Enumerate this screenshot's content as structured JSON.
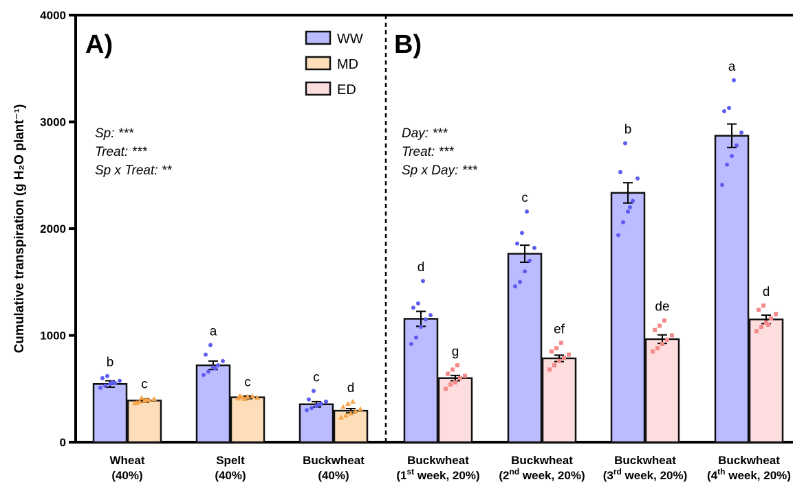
{
  "chart_data": {
    "type": "bar",
    "ylabel": "Cumulative transpiration (g H₂O plant⁻¹)",
    "ylim": [
      0,
      4000
    ],
    "yticks": [
      "0",
      "1000",
      "2000",
      "3000",
      "4000"
    ],
    "panels": [
      "A)",
      "B)"
    ],
    "legend": {
      "placement": "top-center",
      "entries": [
        {
          "name": "WW",
          "color": "#bbbcff",
          "stroke": "#111111"
        },
        {
          "name": "MD",
          "color": "#fddeb8",
          "stroke": "#111111"
        },
        {
          "name": "ED",
          "color": "#fddddd",
          "stroke": "#111111"
        }
      ]
    },
    "stats_a": [
      "Sp: ***",
      "Treat: ***",
      "Sp x Treat: **"
    ],
    "stats_b": [
      "Day: ***",
      "Treat: ***",
      "Sp x Day: ***"
    ],
    "groups": [
      {
        "line1": "Wheat",
        "line2": "(40%)",
        "bars": [
          {
            "treatment": "WW",
            "value": 545,
            "se": 30,
            "letter": "b",
            "points": [
              510,
              530,
              545,
              555,
              575,
              600,
              620,
              560
            ]
          },
          {
            "treatment": "MD",
            "value": 390,
            "se": 15,
            "letter": "c",
            "points": [
              365,
              380,
              390,
              395,
              405,
              370,
              415,
              400
            ]
          }
        ]
      },
      {
        "line1": "Spelt",
        "line2": "(40%)",
        "bars": [
          {
            "treatment": "WW",
            "value": 720,
            "se": 40,
            "letter": "a",
            "points": [
              630,
              660,
              700,
              720,
              760,
              820,
              910,
              690
            ]
          },
          {
            "treatment": "MD",
            "value": 420,
            "se": 12,
            "letter": "c",
            "points": [
              410,
              420,
              425,
              430,
              415,
              435,
              405
            ]
          }
        ]
      },
      {
        "line1": "Buckwheat",
        "line2": "(40%)",
        "bars": [
          {
            "treatment": "WW",
            "value": 355,
            "se": 25,
            "letter": "c",
            "points": [
              300,
              320,
              340,
              360,
              380,
              400,
              480,
              350
            ]
          },
          {
            "treatment": "MD",
            "value": 295,
            "se": 20,
            "letter": "d",
            "points": [
              230,
              250,
              270,
              290,
              310,
              330,
              360,
              380
            ]
          }
        ]
      },
      {
        "line1": "Buckwheat",
        "line2": "(1",
        "sup": "st",
        "line2b": " week, 20%)",
        "bars": [
          {
            "treatment": "WW",
            "value": 1155,
            "se": 70,
            "letter": "d",
            "points": [
              920,
              980,
              1080,
              1150,
              1190,
              1260,
              1300,
              1510
            ]
          },
          {
            "treatment": "ED",
            "value": 600,
            "se": 25,
            "letter": "g",
            "points": [
              500,
              540,
              560,
              600,
              620,
              640,
              680,
              720
            ]
          }
        ]
      },
      {
        "line1": "Buckwheat",
        "line2": "(2",
        "sup": "nd",
        "line2b": " week, 20%)",
        "bars": [
          {
            "treatment": "WW",
            "value": 1765,
            "se": 80,
            "letter": "c",
            "points": [
              1460,
              1500,
              1600,
              1700,
              1820,
              1860,
              1960,
              2160
            ]
          },
          {
            "treatment": "ED",
            "value": 785,
            "se": 30,
            "letter": "ef",
            "points": [
              680,
              720,
              760,
              790,
              820,
              850,
              880,
              930
            ]
          }
        ]
      },
      {
        "line1": "Buckwheat",
        "line2": "(3",
        "sup": "rd",
        "line2b": " week, 20%)",
        "bars": [
          {
            "treatment": "WW",
            "value": 2335,
            "se": 95,
            "letter": "b",
            "points": [
              1940,
              2060,
              2160,
              2260,
              2470,
              2530,
              2800,
              2200
            ]
          },
          {
            "treatment": "ED",
            "value": 965,
            "se": 40,
            "letter": "de",
            "points": [
              850,
              880,
              920,
              960,
              1000,
              1050,
              1090,
              1140
            ]
          }
        ]
      },
      {
        "line1": "Buckwheat",
        "line2": "(4",
        "sup": "th",
        "line2b": " week, 20%)",
        "bars": [
          {
            "treatment": "WW",
            "value": 2870,
            "se": 110,
            "letter": "a",
            "points": [
              2410,
              2600,
              2680,
              2780,
              2900,
              3100,
              3130,
              3390
            ]
          },
          {
            "treatment": "ED",
            "value": 1150,
            "se": 40,
            "letter": "d",
            "points": [
              1040,
              1080,
              1120,
              1160,
              1200,
              1240,
              1280,
              1100
            ]
          }
        ]
      }
    ]
  }
}
